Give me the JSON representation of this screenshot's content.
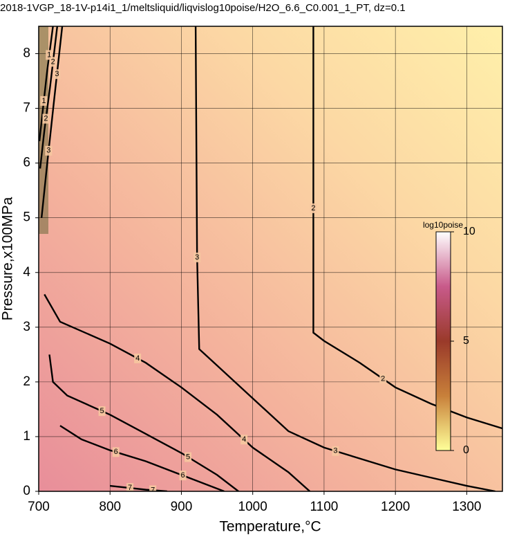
{
  "chart_data": {
    "type": "contour",
    "title": "2018-1VGP_18-1V-p14i1_1/meltsliquid/liqvislog10poise/H2O_6.6_C0.001_1_PT, dz=0.1",
    "x_label": "Temperature,°C",
    "y_label": "Pressure,x100MPa",
    "xlim": [
      700,
      1350
    ],
    "ylim": [
      0,
      8.5
    ],
    "xticks": [
      700,
      800,
      900,
      1000,
      1100,
      1200,
      1300
    ],
    "yticks": [
      0,
      1,
      2,
      3,
      4,
      5,
      6,
      7,
      8
    ],
    "grid": true,
    "contours": [
      {
        "level": 1,
        "T": [
          701,
          706,
          712,
          720
        ],
        "P": [
          6.4,
          7.0,
          7.7,
          8.5
        ]
      },
      {
        "level": 2,
        "T": [
          702,
          708,
          716,
          726
        ],
        "P": [
          5.9,
          6.6,
          7.4,
          8.5
        ]
      },
      {
        "level": 3,
        "T": [
          704,
          712,
          722,
          733
        ],
        "P": [
          5.0,
          6.0,
          7.2,
          8.5
        ]
      },
      {
        "level": 2,
        "T": [
          1085,
          1085,
          1085,
          1100,
          1150,
          1200,
          1250,
          1300,
          1350
        ],
        "P": [
          8.5,
          5.2,
          2.9,
          2.75,
          2.35,
          1.9,
          1.6,
          1.35,
          1.15
        ]
      },
      {
        "level": 3,
        "T": [
          920,
          922,
          925,
          950,
          1000,
          1050,
          1100,
          1200,
          1300,
          1340
        ],
        "P": [
          8.5,
          4.3,
          2.6,
          2.3,
          1.7,
          1.1,
          0.8,
          0.4,
          0.1,
          0
        ]
      },
      {
        "level": 4,
        "T": [
          708,
          730,
          800,
          850,
          900,
          950,
          1000,
          1050,
          1080
        ],
        "P": [
          3.6,
          3.1,
          2.7,
          2.35,
          1.9,
          1.4,
          0.8,
          0.35,
          0
        ]
      },
      {
        "level": 5,
        "T": [
          715,
          720,
          740,
          800,
          850,
          900,
          950,
          980
        ],
        "P": [
          2.5,
          2.0,
          1.75,
          1.4,
          1.05,
          0.7,
          0.3,
          0
        ]
      },
      {
        "level": 6,
        "T": [
          730,
          760,
          800,
          850,
          900,
          960
        ],
        "P": [
          1.2,
          0.95,
          0.75,
          0.55,
          0.3,
          0
        ]
      },
      {
        "level": 7,
        "T": [
          800,
          850,
          880
        ],
        "P": [
          0.1,
          0.03,
          0
        ]
      }
    ],
    "colorbar": {
      "label": "log10poise",
      "lim": [
        0,
        10
      ],
      "ticks": [
        0,
        5,
        10
      ],
      "colors": [
        "#ffff99",
        "#c8803a",
        "#9a3a2a",
        "#c85a8a",
        "#ffffff"
      ]
    }
  }
}
